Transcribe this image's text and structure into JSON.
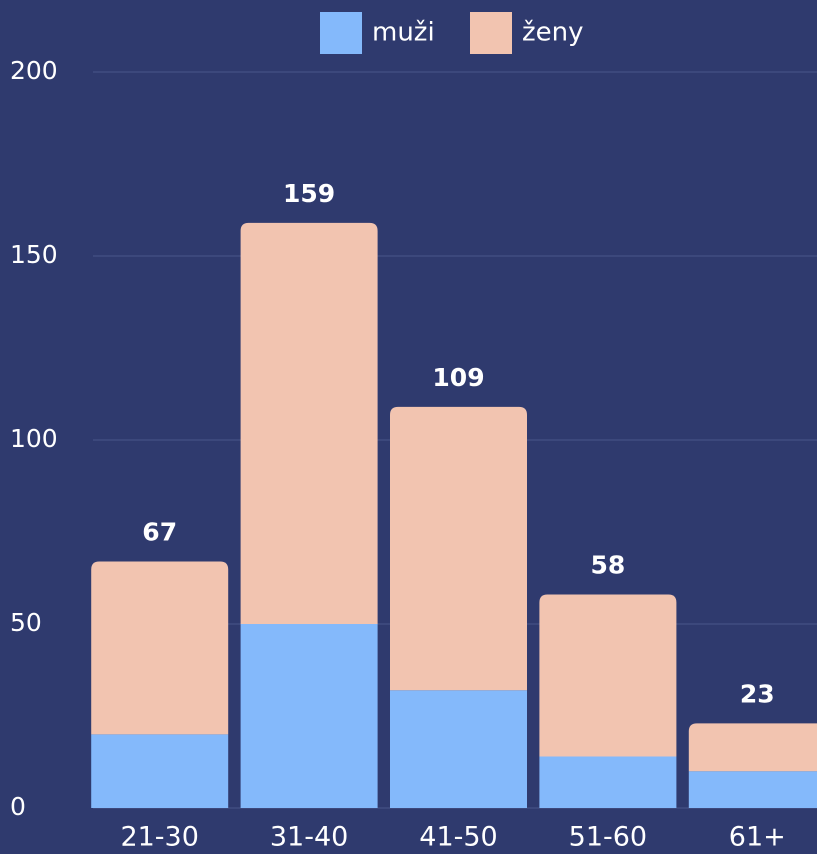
{
  "chart_data": {
    "type": "stacked_bar",
    "categories": [
      "21-30",
      "31-40",
      "41-50",
      "51-60",
      "61+"
    ],
    "series": [
      {
        "name": "muži",
        "color": "#84b9fb",
        "values": [
          20,
          50,
          32,
          14,
          10
        ]
      },
      {
        "name": "ženy",
        "color": "#f2c4b0",
        "values": [
          47,
          109,
          77,
          44,
          13
        ]
      }
    ],
    "totals": [
      67,
      159,
      109,
      58,
      23
    ],
    "ylim": [
      0,
      200
    ],
    "yticks": [
      0,
      50,
      100,
      150,
      200
    ],
    "grid": true,
    "legend": "top"
  }
}
